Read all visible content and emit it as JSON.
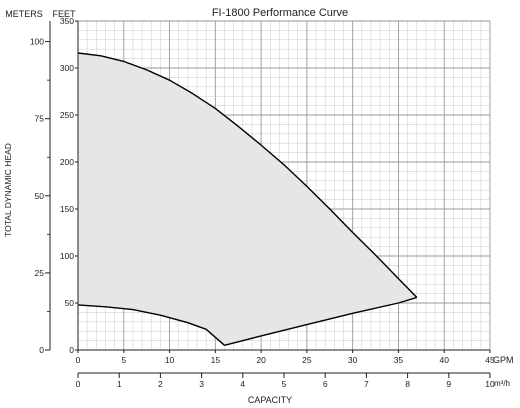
{
  "chart_data": {
    "type": "area",
    "title": "FI-1800 Performance Curve",
    "ylabel": "TOTAL DYNAMIC HEAD",
    "xlabel": "CAPACITY",
    "y_unit_left_label": "METERS",
    "y_unit_right_label": "FEET",
    "x_unit_top": "GPM",
    "x_unit_bottom": "m³/h",
    "xlim_gpm": [
      0,
      45
    ],
    "ylim_feet": [
      0,
      350
    ],
    "x_gpm_ticks": [
      "0",
      "5",
      "10",
      "15",
      "20",
      "25",
      "30",
      "35",
      "40",
      "45"
    ],
    "x_m3h_ticks": [
      "0",
      "1",
      "2",
      "3",
      "4",
      "5",
      "6",
      "7",
      "8",
      "9",
      "10"
    ],
    "y_feet_ticks": [
      "0",
      "50",
      "100",
      "150",
      "200",
      "250",
      "300",
      "350"
    ],
    "y_meter_ticks": [
      "0",
      "25",
      "50",
      "75",
      "100"
    ],
    "grid": true,
    "fill_color": "#e6e6e6",
    "line_color": "#000000",
    "series": [
      {
        "values": [
          [
            0,
            316
          ],
          [
            2.5,
            313
          ],
          [
            5,
            307
          ],
          [
            7.5,
            298
          ],
          [
            10,
            287
          ],
          [
            12.5,
            273
          ],
          [
            15,
            257
          ],
          [
            17.5,
            238
          ],
          [
            20,
            218
          ],
          [
            22.5,
            197
          ],
          [
            25,
            174
          ],
          [
            27.5,
            150
          ],
          [
            30,
            125
          ],
          [
            32.5,
            101
          ],
          [
            35,
            76
          ],
          [
            37,
            56
          ]
        ]
      },
      {
        "values": [
          [
            0,
            48
          ],
          [
            3,
            46
          ],
          [
            6,
            43
          ],
          [
            9,
            37
          ],
          [
            12,
            29
          ],
          [
            14,
            22
          ],
          [
            16,
            5
          ]
        ]
      },
      {
        "values": [
          [
            16,
            5
          ],
          [
            20,
            15
          ],
          [
            25,
            27
          ],
          [
            30,
            39
          ],
          [
            35,
            50
          ],
          [
            37,
            56
          ]
        ]
      }
    ]
  }
}
